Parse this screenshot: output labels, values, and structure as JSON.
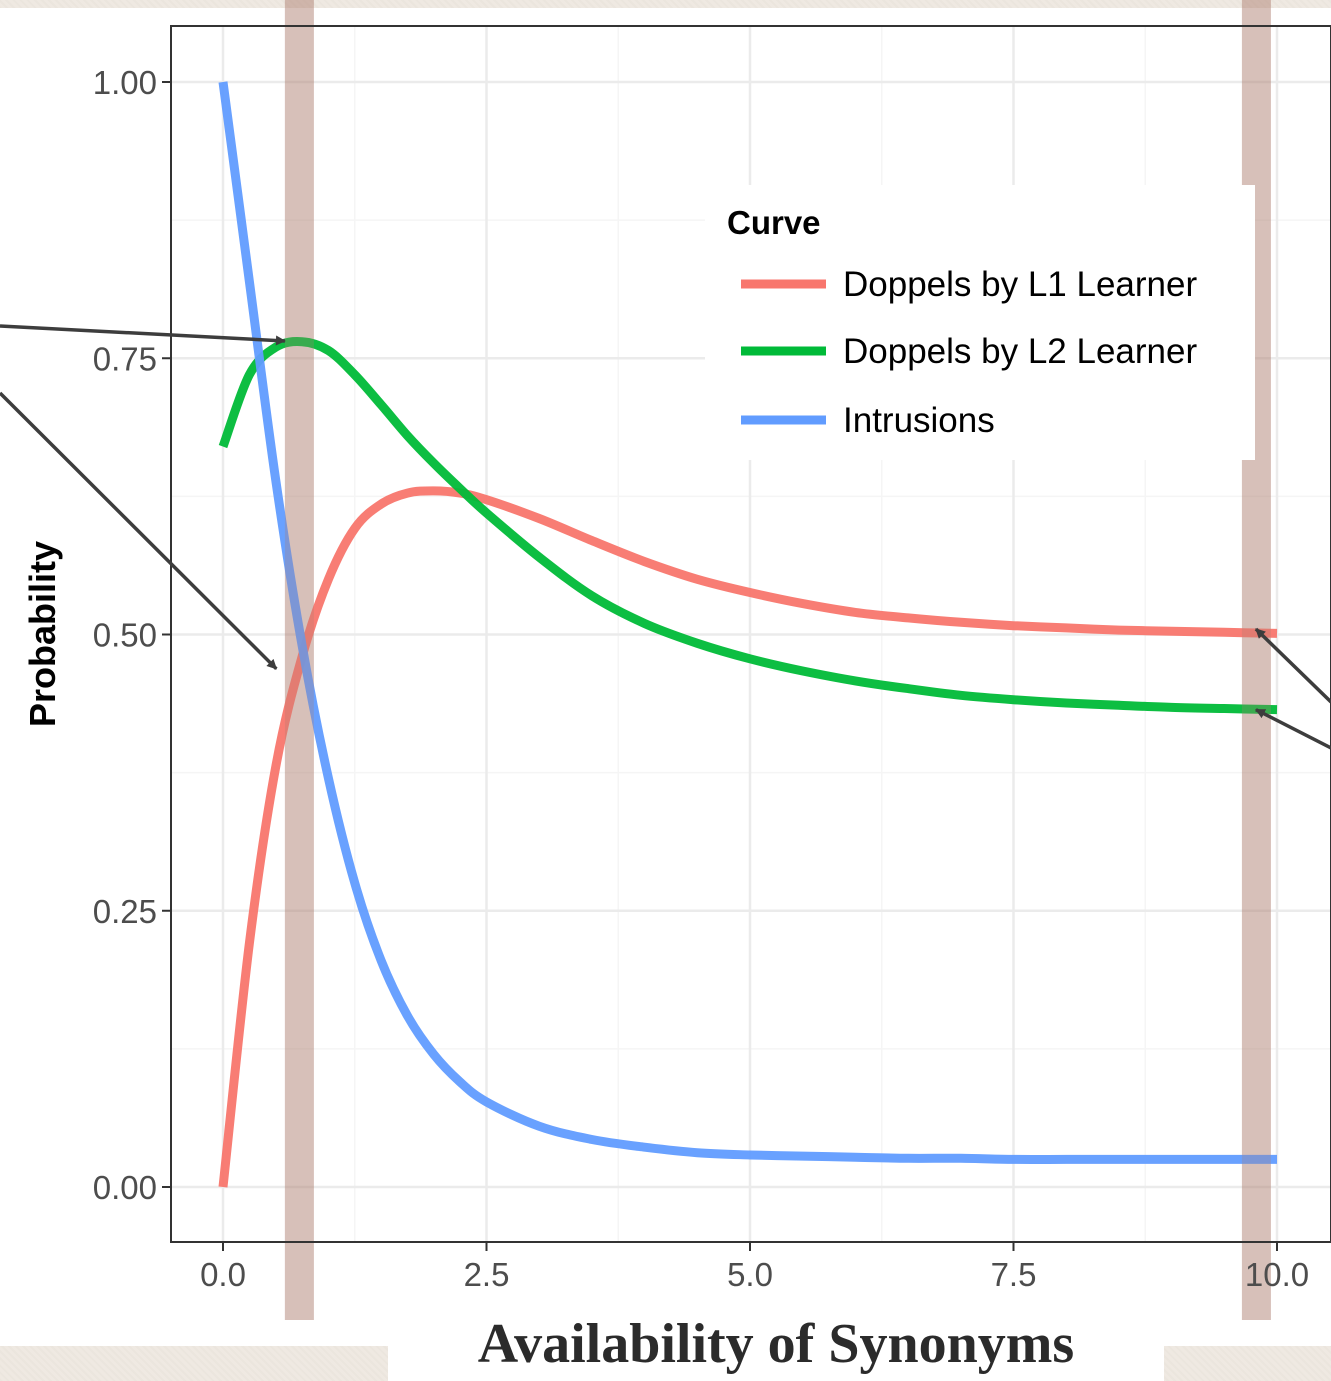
{
  "chart_data": {
    "type": "line",
    "xlabel": "Availability of Synonyms",
    "ylabel": "Probability",
    "xlim": [
      -0.5,
      10.5
    ],
    "ylim": [
      -0.05,
      1.05
    ],
    "x_ticks": [
      "0.0",
      "2.5",
      "5.0",
      "7.5",
      "10.0"
    ],
    "y_ticks": [
      "0.00",
      "0.25",
      "0.50",
      "0.75",
      "1.00"
    ],
    "grid": true,
    "legend": {
      "title": "Curve",
      "placement": "inside top-right",
      "entries": [
        "Doppels by L1 Learner",
        "Doppels by L2 Learner",
        "Intrusions"
      ]
    },
    "x": [
      0,
      0.25,
      0.5,
      0.75,
      1.0,
      1.25,
      1.5,
      1.75,
      2.0,
      2.25,
      2.5,
      3.0,
      3.5,
      4.0,
      4.5,
      5.0,
      5.5,
      6.0,
      6.5,
      7.0,
      7.5,
      8.0,
      8.5,
      9.0,
      9.5,
      10.0
    ],
    "series": [
      {
        "name": "Doppels by L1 Learner",
        "color": "#f8766d",
        "values": [
          0.0,
          0.22,
          0.38,
          0.48,
          0.55,
          0.596,
          0.618,
          0.628,
          0.63,
          0.628,
          0.622,
          0.605,
          0.585,
          0.566,
          0.55,
          0.538,
          0.528,
          0.52,
          0.515,
          0.511,
          0.508,
          0.506,
          0.504,
          0.503,
          0.502,
          0.501
        ]
      },
      {
        "name": "Doppels by L2 Learner",
        "color": "#00ba38",
        "values": [
          0.67,
          0.735,
          0.76,
          0.765,
          0.757,
          0.735,
          0.708,
          0.68,
          0.655,
          0.632,
          0.61,
          0.57,
          0.535,
          0.51,
          0.492,
          0.478,
          0.467,
          0.458,
          0.451,
          0.445,
          0.441,
          0.438,
          0.436,
          0.434,
          0.433,
          0.432
        ]
      },
      {
        "name": "Intrusions",
        "color": "#619cff",
        "values": [
          1.0,
          0.82,
          0.64,
          0.49,
          0.37,
          0.275,
          0.205,
          0.155,
          0.12,
          0.095,
          0.077,
          0.055,
          0.043,
          0.036,
          0.031,
          0.029,
          0.028,
          0.027,
          0.026,
          0.026,
          0.025,
          0.025,
          0.025,
          0.025,
          0.025,
          0.025
        ]
      }
    ],
    "highlight_bands_x": [
      0.72,
      9.8
    ],
    "annotations": [
      {
        "type": "arrow",
        "target": [
          0.72,
          0.765
        ]
      },
      {
        "type": "arrow",
        "target": [
          0.6,
          0.46
        ]
      },
      {
        "type": "arrow",
        "target": [
          9.8,
          0.505
        ]
      },
      {
        "type": "arrow",
        "target": [
          9.8,
          0.432
        ]
      }
    ],
    "colors": {
      "band": "#b08073",
      "arrow": "#3d3d3d",
      "grid_major": "#ebebeb",
      "grid_minor": "#f5f5f5",
      "panel_border": "#333333"
    }
  }
}
